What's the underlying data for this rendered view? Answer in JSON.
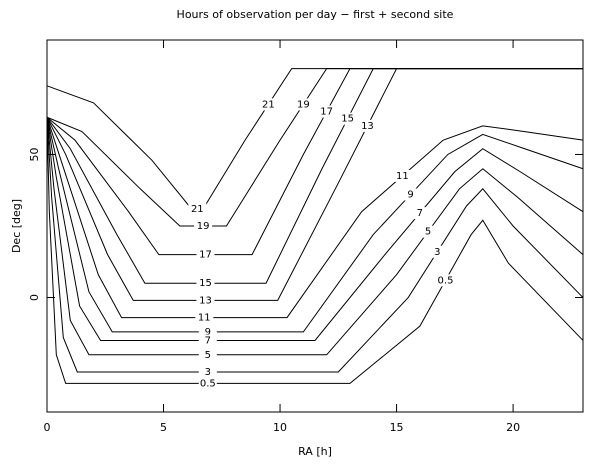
{
  "chart_data": {
    "type": "contour",
    "title": "Hours of observation per day − first + second site",
    "x_label": "RA [h]",
    "y_label": "Dec [deg]",
    "xlim": [
      0,
      23
    ],
    "ylim": [
      -40,
      90
    ],
    "xticks": [
      0,
      5,
      10,
      15,
      20
    ],
    "yticks": [
      0,
      50
    ],
    "color": "#000000",
    "contours": [
      {
        "level": 21,
        "x": [
          0,
          2,
          4.5,
          6.2,
          6.7,
          8.5,
          10.5,
          23
        ],
        "y": [
          74,
          68,
          48,
          31,
          31,
          55,
          80,
          80
        ]
      },
      {
        "level": 19,
        "x": [
          0,
          1.5,
          4,
          5.7,
          7.7,
          10,
          12,
          23
        ],
        "y": [
          63,
          58,
          38,
          25,
          25,
          55,
          80,
          80
        ]
      },
      {
        "level": 17,
        "x": [
          0,
          1.2,
          3.5,
          4.8,
          8.8,
          11,
          13,
          23
        ],
        "y": [
          63,
          55,
          30,
          15,
          15,
          50,
          80,
          80
        ]
      },
      {
        "level": 15,
        "x": [
          0,
          1,
          3,
          4.2,
          9.4,
          11.8,
          14,
          23
        ],
        "y": [
          63,
          52,
          22,
          5,
          5,
          45,
          80,
          80
        ]
      },
      {
        "level": 13,
        "x": [
          0,
          0.8,
          2.6,
          3.7,
          9.9,
          12.5,
          15,
          23
        ],
        "y": [
          63,
          50,
          15,
          -1,
          -1,
          40,
          80,
          80
        ]
      },
      {
        "level": 11,
        "x": [
          0,
          0.6,
          2.2,
          3.2,
          10.3,
          13.5,
          17,
          18.7,
          20.5,
          23
        ],
        "y": [
          63,
          48,
          8,
          -7,
          -7,
          30,
          55,
          60,
          58,
          55
        ]
      },
      {
        "level": 9,
        "x": [
          0,
          0.5,
          1.8,
          2.8,
          11,
          14,
          17.2,
          18.7,
          20.5,
          23
        ],
        "y": [
          63,
          45,
          2,
          -12,
          -12,
          22,
          50,
          57,
          52,
          45
        ]
      },
      {
        "level": 7,
        "x": [
          0,
          0.4,
          1.4,
          2.3,
          11.5,
          14.5,
          17.5,
          18.7,
          20.3,
          23
        ],
        "y": [
          63,
          42,
          -3,
          -15,
          -15,
          15,
          44,
          52,
          44,
          30
        ]
      },
      {
        "level": 5,
        "x": [
          0,
          0.3,
          1,
          1.8,
          12,
          15,
          17.7,
          18.7,
          20.2,
          23
        ],
        "y": [
          63,
          38,
          -8,
          -20,
          -20,
          8,
          38,
          45,
          35,
          15
        ]
      },
      {
        "level": 3,
        "x": [
          0,
          0.2,
          0.7,
          1.3,
          12.5,
          15.5,
          18,
          18.7,
          20,
          23
        ],
        "y": [
          63,
          35,
          -14,
          -26,
          -26,
          0,
          32,
          38,
          25,
          0
        ]
      },
      {
        "level": 0.5,
        "x": [
          0,
          0.1,
          0.4,
          0.8,
          13,
          16,
          18.2,
          18.7,
          19.8,
          23
        ],
        "y": [
          63,
          30,
          -20,
          -30,
          -30,
          -10,
          22,
          27,
          12,
          -15
        ]
      }
    ]
  }
}
